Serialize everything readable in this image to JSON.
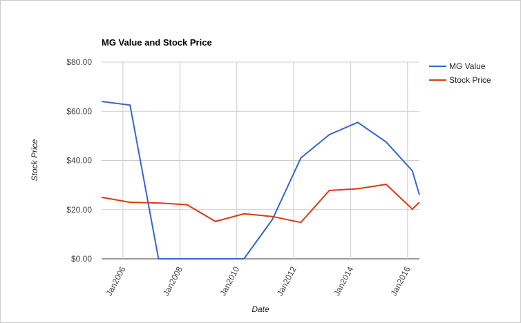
{
  "chart_data": {
    "type": "line",
    "title": "MG Value and Stock Price",
    "x_label": "Date",
    "y_label": "Stock Price",
    "x": [
      "2005-04",
      "2006-04",
      "2007-04",
      "2008-04",
      "2009-04",
      "2010-04",
      "2011-04",
      "2012-04",
      "2013-04",
      "2014-04",
      "2015-04",
      "2016-03",
      "2016-06"
    ],
    "series": [
      {
        "name": "MG Value",
        "color": "#3366cc",
        "values": [
          64,
          62.5,
          0,
          0,
          0,
          0,
          16,
          41,
          50.5,
          55.5,
          47.5,
          35.8,
          26
        ]
      },
      {
        "name": "Stock Price",
        "color": "#dc3912",
        "values": [
          25,
          23,
          22.7,
          22,
          15.2,
          18.3,
          17.2,
          14.8,
          27.8,
          28.5,
          30.3,
          20.2,
          23
        ]
      }
    ],
    "xlim": [
      "2005-04",
      "2016-06"
    ],
    "xticks": [
      {
        "value": "2006-01",
        "label": "Jan2006"
      },
      {
        "value": "2008-01",
        "label": "Jan2008"
      },
      {
        "value": "2010-01",
        "label": "Jan2010"
      },
      {
        "value": "2012-01",
        "label": "Jan2012"
      },
      {
        "value": "2014-01",
        "label": "Jan2014"
      },
      {
        "value": "2016-01",
        "label": "Jan2016"
      }
    ],
    "ylim": [
      0,
      80
    ],
    "yticks": [
      {
        "value": 0,
        "label": "$0.00"
      },
      {
        "value": 20,
        "label": "$20.00"
      },
      {
        "value": 40,
        "label": "$40.00"
      },
      {
        "value": 60,
        "label": "$60.00"
      },
      {
        "value": 80,
        "label": "$80.00"
      }
    ],
    "grid": true,
    "legend": "right"
  }
}
